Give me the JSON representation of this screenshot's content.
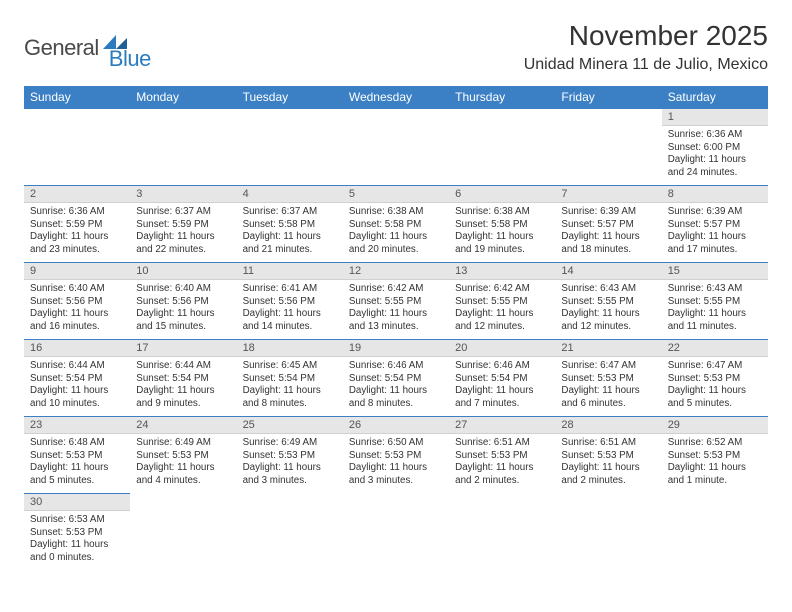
{
  "logo": {
    "text1": "General",
    "text2": "Blue"
  },
  "title": "November 2025",
  "location": "Unidad Minera 11 de Julio, Mexico",
  "colors": {
    "header_bg": "#3b7fc4",
    "header_fg": "#ffffff",
    "daynum_bg": "#e6e6e6",
    "row_border": "#3b7fc4",
    "logo_gray": "#4a4a4a",
    "logo_blue": "#2b7bbf"
  },
  "day_headers": [
    "Sunday",
    "Monday",
    "Tuesday",
    "Wednesday",
    "Thursday",
    "Friday",
    "Saturday"
  ],
  "weeks": [
    [
      null,
      null,
      null,
      null,
      null,
      null,
      {
        "n": "1",
        "sr": "6:36 AM",
        "ss": "6:00 PM",
        "dl": "11 hours and 24 minutes."
      }
    ],
    [
      {
        "n": "2",
        "sr": "6:36 AM",
        "ss": "5:59 PM",
        "dl": "11 hours and 23 minutes."
      },
      {
        "n": "3",
        "sr": "6:37 AM",
        "ss": "5:59 PM",
        "dl": "11 hours and 22 minutes."
      },
      {
        "n": "4",
        "sr": "6:37 AM",
        "ss": "5:58 PM",
        "dl": "11 hours and 21 minutes."
      },
      {
        "n": "5",
        "sr": "6:38 AM",
        "ss": "5:58 PM",
        "dl": "11 hours and 20 minutes."
      },
      {
        "n": "6",
        "sr": "6:38 AM",
        "ss": "5:58 PM",
        "dl": "11 hours and 19 minutes."
      },
      {
        "n": "7",
        "sr": "6:39 AM",
        "ss": "5:57 PM",
        "dl": "11 hours and 18 minutes."
      },
      {
        "n": "8",
        "sr": "6:39 AM",
        "ss": "5:57 PM",
        "dl": "11 hours and 17 minutes."
      }
    ],
    [
      {
        "n": "9",
        "sr": "6:40 AM",
        "ss": "5:56 PM",
        "dl": "11 hours and 16 minutes."
      },
      {
        "n": "10",
        "sr": "6:40 AM",
        "ss": "5:56 PM",
        "dl": "11 hours and 15 minutes."
      },
      {
        "n": "11",
        "sr": "6:41 AM",
        "ss": "5:56 PM",
        "dl": "11 hours and 14 minutes."
      },
      {
        "n": "12",
        "sr": "6:42 AM",
        "ss": "5:55 PM",
        "dl": "11 hours and 13 minutes."
      },
      {
        "n": "13",
        "sr": "6:42 AM",
        "ss": "5:55 PM",
        "dl": "11 hours and 12 minutes."
      },
      {
        "n": "14",
        "sr": "6:43 AM",
        "ss": "5:55 PM",
        "dl": "11 hours and 12 minutes."
      },
      {
        "n": "15",
        "sr": "6:43 AM",
        "ss": "5:55 PM",
        "dl": "11 hours and 11 minutes."
      }
    ],
    [
      {
        "n": "16",
        "sr": "6:44 AM",
        "ss": "5:54 PM",
        "dl": "11 hours and 10 minutes."
      },
      {
        "n": "17",
        "sr": "6:44 AM",
        "ss": "5:54 PM",
        "dl": "11 hours and 9 minutes."
      },
      {
        "n": "18",
        "sr": "6:45 AM",
        "ss": "5:54 PM",
        "dl": "11 hours and 8 minutes."
      },
      {
        "n": "19",
        "sr": "6:46 AM",
        "ss": "5:54 PM",
        "dl": "11 hours and 8 minutes."
      },
      {
        "n": "20",
        "sr": "6:46 AM",
        "ss": "5:54 PM",
        "dl": "11 hours and 7 minutes."
      },
      {
        "n": "21",
        "sr": "6:47 AM",
        "ss": "5:53 PM",
        "dl": "11 hours and 6 minutes."
      },
      {
        "n": "22",
        "sr": "6:47 AM",
        "ss": "5:53 PM",
        "dl": "11 hours and 5 minutes."
      }
    ],
    [
      {
        "n": "23",
        "sr": "6:48 AM",
        "ss": "5:53 PM",
        "dl": "11 hours and 5 minutes."
      },
      {
        "n": "24",
        "sr": "6:49 AM",
        "ss": "5:53 PM",
        "dl": "11 hours and 4 minutes."
      },
      {
        "n": "25",
        "sr": "6:49 AM",
        "ss": "5:53 PM",
        "dl": "11 hours and 3 minutes."
      },
      {
        "n": "26",
        "sr": "6:50 AM",
        "ss": "5:53 PM",
        "dl": "11 hours and 3 minutes."
      },
      {
        "n": "27",
        "sr": "6:51 AM",
        "ss": "5:53 PM",
        "dl": "11 hours and 2 minutes."
      },
      {
        "n": "28",
        "sr": "6:51 AM",
        "ss": "5:53 PM",
        "dl": "11 hours and 2 minutes."
      },
      {
        "n": "29",
        "sr": "6:52 AM",
        "ss": "5:53 PM",
        "dl": "11 hours and 1 minute."
      }
    ],
    [
      {
        "n": "30",
        "sr": "6:53 AM",
        "ss": "5:53 PM",
        "dl": "11 hours and 0 minutes."
      },
      null,
      null,
      null,
      null,
      null,
      null
    ]
  ],
  "labels": {
    "sunrise": "Sunrise:",
    "sunset": "Sunset:",
    "daylight": "Daylight:"
  }
}
